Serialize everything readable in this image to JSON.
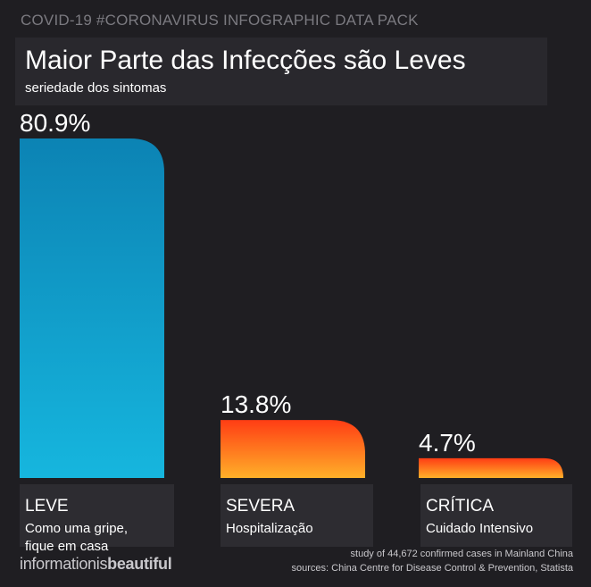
{
  "header": {
    "pack_label": "COVID-19 #CORONAVIRUS INFOGRAPHIC DATA PACK",
    "title": "Maior Parte das Infecções são Leves",
    "subtitle": "seriedade dos sintomas"
  },
  "chart_data": {
    "type": "bar",
    "title": "Maior Parte das Infecções são Leves",
    "subtitle": "seriedade dos sintomas",
    "categories": [
      "LEVE",
      "SEVERA",
      "CRÍTICA"
    ],
    "values": [
      80.9,
      13.8,
      4.7
    ],
    "value_labels": [
      "80.9%",
      "13.8%",
      "4.7%"
    ],
    "descriptions": [
      "Como uma gripe, fique em casa",
      "Hospitalização",
      "Cuidado Intensivo"
    ],
    "xlabel": "",
    "ylabel": "",
    "ylim": [
      0,
      80.9
    ],
    "grid": false,
    "colors": {
      "leve": [
        "#0c83b4",
        "#16b6de"
      ],
      "severa": [
        "#ff3d14",
        "#ffb029"
      ],
      "critica": [
        "#ff3d14",
        "#ffb029"
      ]
    }
  },
  "categories": [
    {
      "name": "LEVE",
      "desc_line1": "Como uma gripe,",
      "desc_line2": "fique em casa"
    },
    {
      "name": "SEVERA",
      "desc_line1": "Hospitalização",
      "desc_line2": ""
    },
    {
      "name": "CRÍTICA",
      "desc_line1": "Cuidado Intensivo",
      "desc_line2": ""
    }
  ],
  "footer": {
    "brand_part1": "informationis",
    "brand_part2": "beautiful",
    "note_line1": "study of 44,672 confirmed cases in Mainland China",
    "note_line2": "sources: China Centre for Disease Control & Prevention, Statista"
  }
}
